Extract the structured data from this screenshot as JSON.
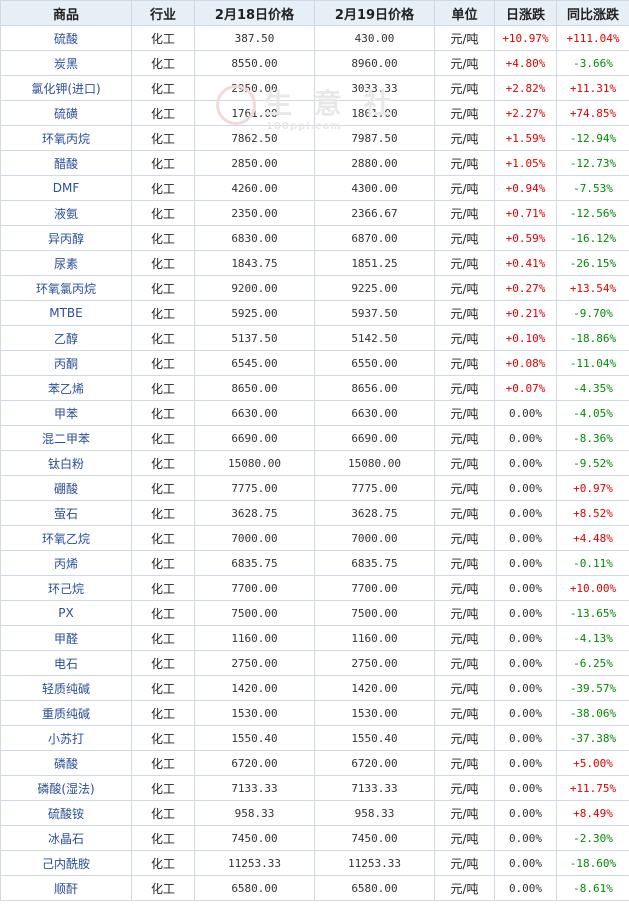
{
  "headers": [
    "商品",
    "行业",
    "2月18日价格",
    "2月19日价格",
    "单位",
    "日涨跌",
    "同比涨跌"
  ],
  "watermark": {
    "text": "生 意 社",
    "url": "100ppi.com"
  },
  "rows": [
    {
      "name": "硫酸",
      "industry": "化工",
      "p1": "387.50",
      "p2": "430.00",
      "unit": "元/吨",
      "daily": "+10.97%",
      "yoy": "+111.04%"
    },
    {
      "name": "炭黑",
      "industry": "化工",
      "p1": "8550.00",
      "p2": "8960.00",
      "unit": "元/吨",
      "daily": "+4.80%",
      "yoy": "-3.66%"
    },
    {
      "name": "氯化钾(进口)",
      "industry": "化工",
      "p1": "2950.00",
      "p2": "3033.33",
      "unit": "元/吨",
      "daily": "+2.82%",
      "yoy": "+11.31%"
    },
    {
      "name": "硫磺",
      "industry": "化工",
      "p1": "1761.00",
      "p2": "1801.00",
      "unit": "元/吨",
      "daily": "+2.27%",
      "yoy": "+74.85%"
    },
    {
      "name": "环氧丙烷",
      "industry": "化工",
      "p1": "7862.50",
      "p2": "7987.50",
      "unit": "元/吨",
      "daily": "+1.59%",
      "yoy": "-12.94%"
    },
    {
      "name": "醋酸",
      "industry": "化工",
      "p1": "2850.00",
      "p2": "2880.00",
      "unit": "元/吨",
      "daily": "+1.05%",
      "yoy": "-12.73%"
    },
    {
      "name": "DMF",
      "industry": "化工",
      "p1": "4260.00",
      "p2": "4300.00",
      "unit": "元/吨",
      "daily": "+0.94%",
      "yoy": "-7.53%"
    },
    {
      "name": "液氨",
      "industry": "化工",
      "p1": "2350.00",
      "p2": "2366.67",
      "unit": "元/吨",
      "daily": "+0.71%",
      "yoy": "-12.56%"
    },
    {
      "name": "异丙醇",
      "industry": "化工",
      "p1": "6830.00",
      "p2": "6870.00",
      "unit": "元/吨",
      "daily": "+0.59%",
      "yoy": "-16.12%"
    },
    {
      "name": "尿素",
      "industry": "化工",
      "p1": "1843.75",
      "p2": "1851.25",
      "unit": "元/吨",
      "daily": "+0.41%",
      "yoy": "-26.15%"
    },
    {
      "name": "环氧氯丙烷",
      "industry": "化工",
      "p1": "9200.00",
      "p2": "9225.00",
      "unit": "元/吨",
      "daily": "+0.27%",
      "yoy": "+13.54%"
    },
    {
      "name": "MTBE",
      "industry": "化工",
      "p1": "5925.00",
      "p2": "5937.50",
      "unit": "元/吨",
      "daily": "+0.21%",
      "yoy": "-9.70%"
    },
    {
      "name": "乙醇",
      "industry": "化工",
      "p1": "5137.50",
      "p2": "5142.50",
      "unit": "元/吨",
      "daily": "+0.10%",
      "yoy": "-18.86%"
    },
    {
      "name": "丙酮",
      "industry": "化工",
      "p1": "6545.00",
      "p2": "6550.00",
      "unit": "元/吨",
      "daily": "+0.08%",
      "yoy": "-11.04%"
    },
    {
      "name": "苯乙烯",
      "industry": "化工",
      "p1": "8650.00",
      "p2": "8656.00",
      "unit": "元/吨",
      "daily": "+0.07%",
      "yoy": "-4.35%"
    },
    {
      "name": "甲苯",
      "industry": "化工",
      "p1": "6630.00",
      "p2": "6630.00",
      "unit": "元/吨",
      "daily": "0.00%",
      "yoy": "-4.05%"
    },
    {
      "name": "混二甲苯",
      "industry": "化工",
      "p1": "6690.00",
      "p2": "6690.00",
      "unit": "元/吨",
      "daily": "0.00%",
      "yoy": "-8.36%"
    },
    {
      "name": "钛白粉",
      "industry": "化工",
      "p1": "15080.00",
      "p2": "15080.00",
      "unit": "元/吨",
      "daily": "0.00%",
      "yoy": "-9.52%"
    },
    {
      "name": "硼酸",
      "industry": "化工",
      "p1": "7775.00",
      "p2": "7775.00",
      "unit": "元/吨",
      "daily": "0.00%",
      "yoy": "+0.97%"
    },
    {
      "name": "萤石",
      "industry": "化工",
      "p1": "3628.75",
      "p2": "3628.75",
      "unit": "元/吨",
      "daily": "0.00%",
      "yoy": "+8.52%"
    },
    {
      "name": "环氧乙烷",
      "industry": "化工",
      "p1": "7000.00",
      "p2": "7000.00",
      "unit": "元/吨",
      "daily": "0.00%",
      "yoy": "+4.48%"
    },
    {
      "name": "丙烯",
      "industry": "化工",
      "p1": "6835.75",
      "p2": "6835.75",
      "unit": "元/吨",
      "daily": "0.00%",
      "yoy": "-0.11%"
    },
    {
      "name": "环己烷",
      "industry": "化工",
      "p1": "7700.00",
      "p2": "7700.00",
      "unit": "元/吨",
      "daily": "0.00%",
      "yoy": "+10.00%"
    },
    {
      "name": "PX",
      "industry": "化工",
      "p1": "7500.00",
      "p2": "7500.00",
      "unit": "元/吨",
      "daily": "0.00%",
      "yoy": "-13.65%"
    },
    {
      "name": "甲醛",
      "industry": "化工",
      "p1": "1160.00",
      "p2": "1160.00",
      "unit": "元/吨",
      "daily": "0.00%",
      "yoy": "-4.13%"
    },
    {
      "name": "电石",
      "industry": "化工",
      "p1": "2750.00",
      "p2": "2750.00",
      "unit": "元/吨",
      "daily": "0.00%",
      "yoy": "-6.25%"
    },
    {
      "name": "轻质纯碱",
      "industry": "化工",
      "p1": "1420.00",
      "p2": "1420.00",
      "unit": "元/吨",
      "daily": "0.00%",
      "yoy": "-39.57%"
    },
    {
      "name": "重质纯碱",
      "industry": "化工",
      "p1": "1530.00",
      "p2": "1530.00",
      "unit": "元/吨",
      "daily": "0.00%",
      "yoy": "-38.06%"
    },
    {
      "name": "小苏打",
      "industry": "化工",
      "p1": "1550.40",
      "p2": "1550.40",
      "unit": "元/吨",
      "daily": "0.00%",
      "yoy": "-37.38%"
    },
    {
      "name": "磷酸",
      "industry": "化工",
      "p1": "6720.00",
      "p2": "6720.00",
      "unit": "元/吨",
      "daily": "0.00%",
      "yoy": "+5.00%"
    },
    {
      "name": "磷酸(湿法)",
      "industry": "化工",
      "p1": "7133.33",
      "p2": "7133.33",
      "unit": "元/吨",
      "daily": "0.00%",
      "yoy": "+11.75%"
    },
    {
      "name": "硫酸铵",
      "industry": "化工",
      "p1": "958.33",
      "p2": "958.33",
      "unit": "元/吨",
      "daily": "0.00%",
      "yoy": "+8.49%"
    },
    {
      "name": "冰晶石",
      "industry": "化工",
      "p1": "7450.00",
      "p2": "7450.00",
      "unit": "元/吨",
      "daily": "0.00%",
      "yoy": "-2.30%"
    },
    {
      "name": "己内酰胺",
      "industry": "化工",
      "p1": "11253.33",
      "p2": "11253.33",
      "unit": "元/吨",
      "daily": "0.00%",
      "yoy": "-18.60%"
    },
    {
      "name": "顺酐",
      "industry": "化工",
      "p1": "6580.00",
      "p2": "6580.00",
      "unit": "元/吨",
      "daily": "0.00%",
      "yoy": "-8.61%"
    }
  ],
  "colors": {
    "up": "#e00000",
    "down": "#008a00",
    "header_bg": "#e6eef6",
    "name": "#2a4f9a"
  }
}
